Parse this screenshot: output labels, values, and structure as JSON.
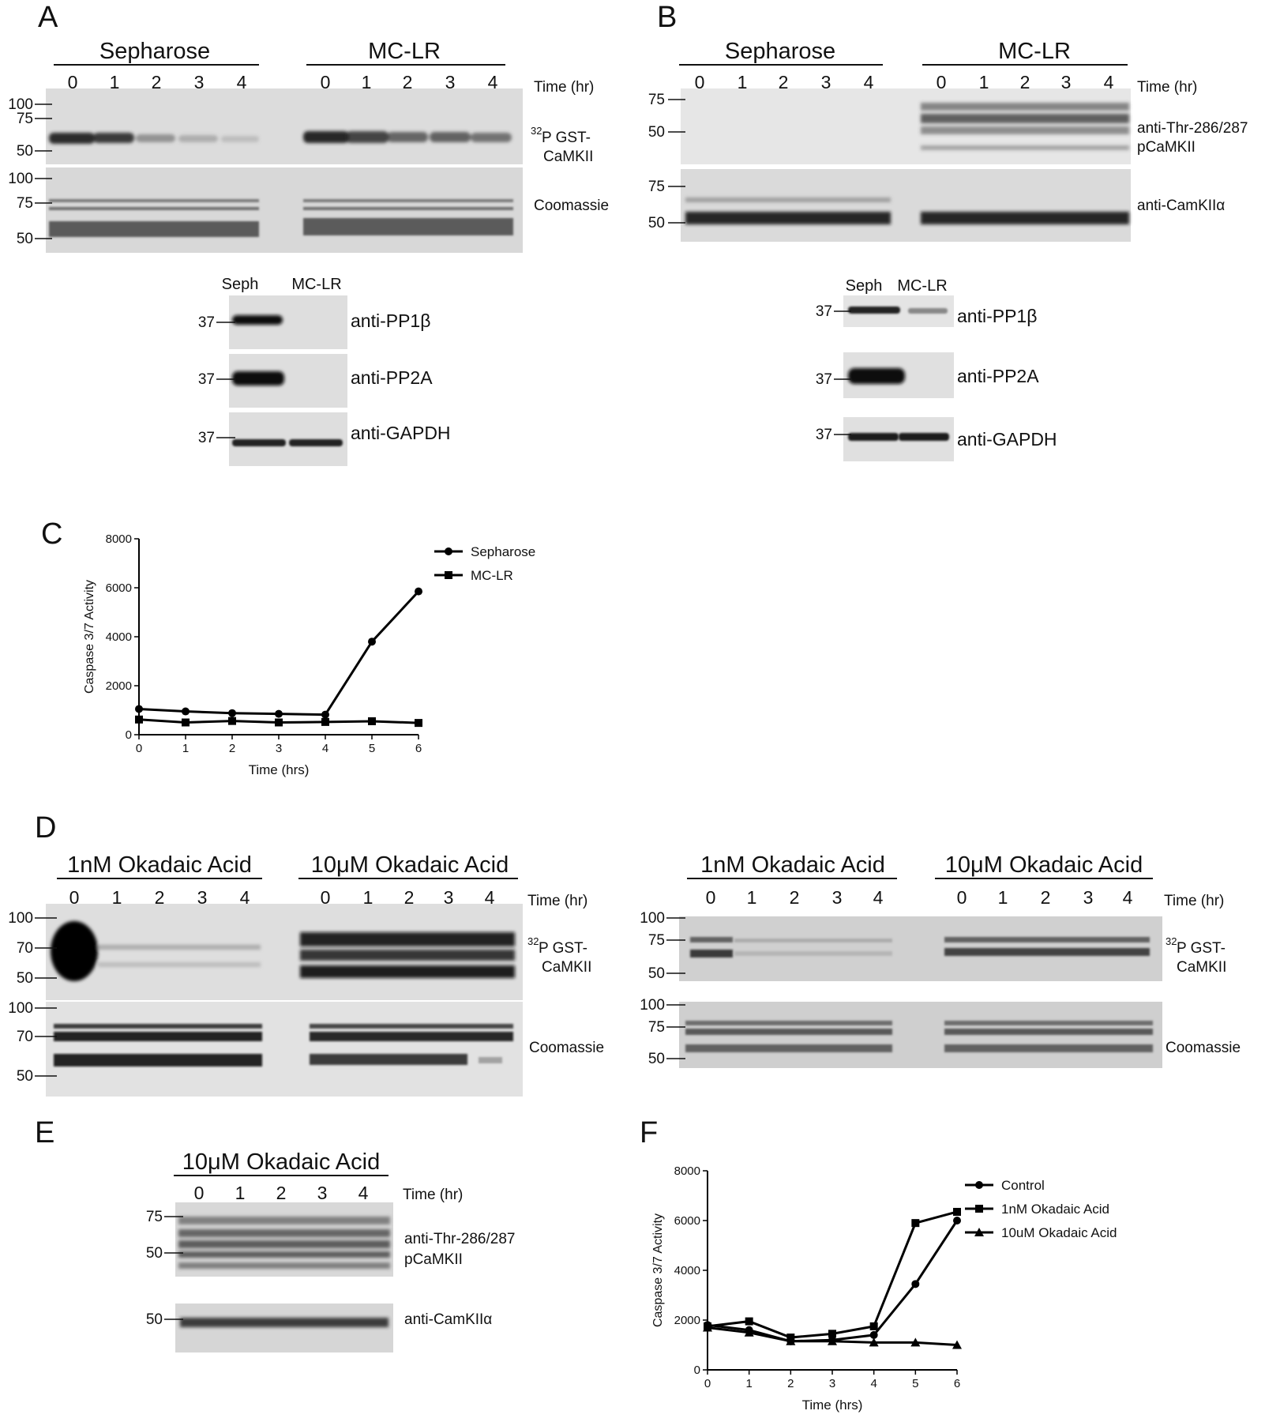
{
  "panels": {
    "A": {
      "letter": "A",
      "groups": [
        "Sepharose",
        "MC-LR"
      ],
      "lanes": [
        "0",
        "1",
        "2",
        "3",
        "4"
      ],
      "time_label": "Time (hr)",
      "blot1": {
        "markers": [
          "100",
          "75",
          "50"
        ],
        "label_line1": "P GST-",
        "label_sup": "32",
        "label_line2": "CaMKII"
      },
      "blot2": {
        "markers": [
          "100",
          "75",
          "50"
        ],
        "label": "Coomassie"
      },
      "small": {
        "cols": [
          "Seph",
          "MC-LR"
        ],
        "marker": "37",
        "labels": [
          "anti-PP1β",
          "anti-PP2A",
          "anti-GAPDH"
        ]
      }
    },
    "B": {
      "letter": "B",
      "groups": [
        "Sepharose",
        "MC-LR"
      ],
      "lanes": [
        "0",
        "1",
        "2",
        "3",
        "4"
      ],
      "time_label": "Time (hr)",
      "blot1": {
        "markers": [
          "75",
          "50"
        ],
        "label_line1": "anti-Thr-286/287",
        "label_line2": "pCaMKII"
      },
      "blot2": {
        "markers": [
          "75",
          "50"
        ],
        "label": "anti-CamKIIα"
      },
      "small": {
        "cols": [
          "Seph",
          "MC-LR"
        ],
        "marker": "37",
        "labels": [
          "anti-PP1β",
          "anti-PP2A",
          "anti-GAPDH"
        ]
      }
    },
    "C": {
      "letter": "C"
    },
    "D": {
      "letter": "D",
      "groups": [
        "1nM Okadaic Acid",
        "10μM Okadaic Acid"
      ],
      "lanes": [
        "0",
        "1",
        "2",
        "3",
        "4"
      ],
      "time_label": "Time (hr)",
      "left": {
        "blot1": {
          "markers": [
            "100",
            "70",
            "50"
          ],
          "label_line1": "P GST-",
          "label_sup": "32",
          "label_line2": "CaMKII"
        },
        "blot2": {
          "markers": [
            "100",
            "70",
            "50"
          ],
          "label": "Coomassie"
        }
      },
      "right": {
        "blot1": {
          "markers": [
            "100",
            "75",
            "50"
          ],
          "label_line1": "P GST-",
          "label_sup": "32",
          "label_line2": "CaMKII"
        },
        "blot2": {
          "markers": [
            "100",
            "75",
            "50"
          ],
          "label": "Coomassie"
        }
      }
    },
    "E": {
      "letter": "E",
      "group": "10μM Okadaic Acid",
      "lanes": [
        "0",
        "1",
        "2",
        "3",
        "4"
      ],
      "time_label": "Time (hr)",
      "blot1": {
        "markers": [
          "75",
          "50"
        ],
        "label_line1": "anti-Thr-286/287",
        "label_line2": "pCaMKII"
      },
      "blot2": {
        "markers": [
          "50"
        ],
        "label": "anti-CamKIIα"
      }
    },
    "F": {
      "letter": "F"
    }
  },
  "chart_data": [
    {
      "panel": "C",
      "type": "line",
      "xlabel": "Time (hrs)",
      "ylabel": "Caspase 3/7 Activity",
      "x": [
        0,
        1,
        2,
        3,
        4,
        5,
        6
      ],
      "xlim": [
        0,
        6
      ],
      "ylim": [
        0,
        8000
      ],
      "yticks": [
        0,
        2000,
        4000,
        6000,
        8000
      ],
      "legend_position": "top-right",
      "series": [
        {
          "name": "Sepharose",
          "marker": "circle",
          "values": [
            1050,
            950,
            880,
            850,
            820,
            3800,
            5850
          ]
        },
        {
          "name": "MC-LR",
          "marker": "square",
          "values": [
            620,
            500,
            560,
            500,
            520,
            550,
            480
          ]
        }
      ]
    },
    {
      "panel": "F",
      "type": "line",
      "xlabel": "Time (hrs)",
      "ylabel": "Caspase 3/7 Activity",
      "x": [
        0,
        1,
        2,
        3,
        4,
        5,
        6
      ],
      "xlim": [
        0,
        6
      ],
      "ylim": [
        0,
        8000
      ],
      "yticks": [
        0,
        2000,
        4000,
        6000,
        8000
      ],
      "legend_position": "top-right",
      "series": [
        {
          "name": "Control",
          "marker": "circle",
          "values": [
            1800,
            1600,
            1150,
            1200,
            1400,
            3450,
            6000
          ]
        },
        {
          "name": "1nM Okadaic Acid",
          "marker": "square",
          "values": [
            1750,
            1950,
            1300,
            1450,
            1750,
            5900,
            6350
          ]
        },
        {
          "name": "10uM Okadaic Acid",
          "marker": "triangle",
          "values": [
            1700,
            1500,
            1150,
            1150,
            1100,
            1100,
            1000
          ]
        }
      ]
    }
  ]
}
